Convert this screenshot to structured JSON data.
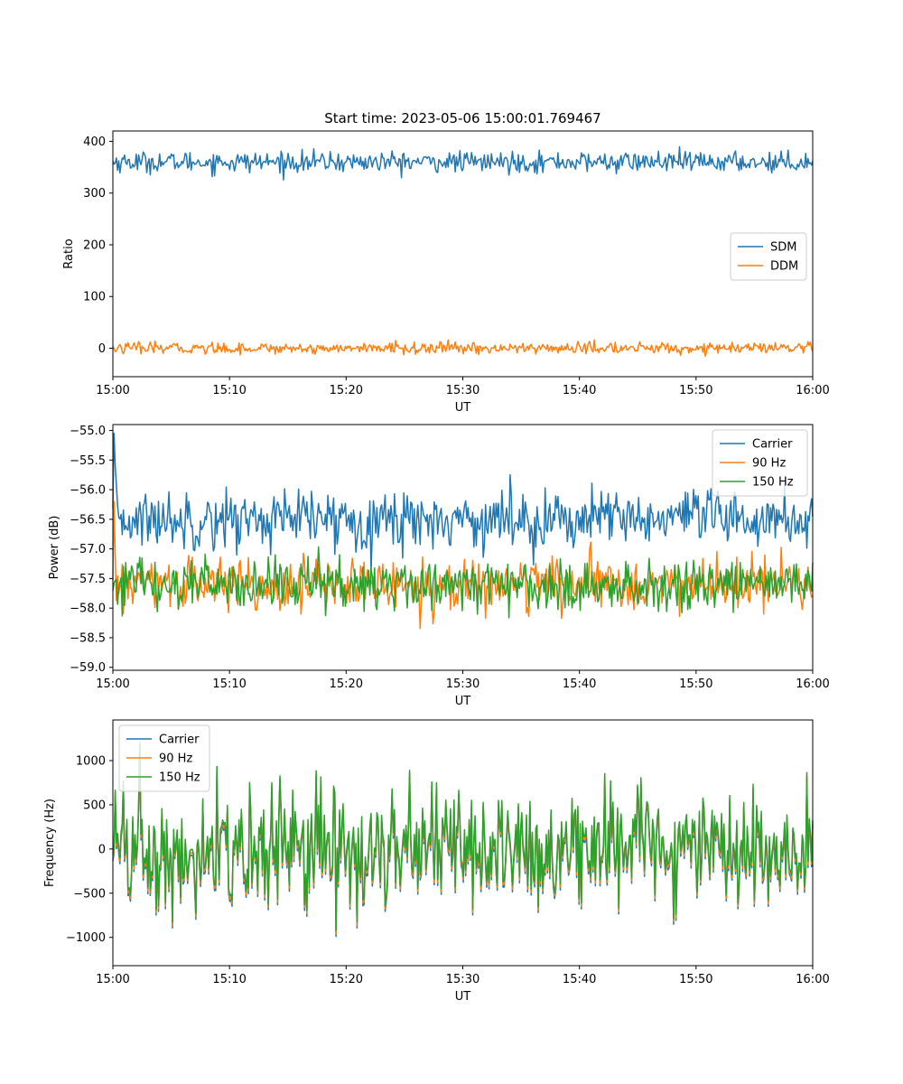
{
  "chart_data": [
    {
      "type": "line",
      "title": "Start time: 2023-05-06 15:00:01.769467",
      "xlabel": "UT",
      "ylabel": "Ratio",
      "xlim": [
        "15:00",
        "16:00"
      ],
      "xticks": [
        "15:00",
        "15:10",
        "15:20",
        "15:30",
        "15:40",
        "15:50",
        "16:00"
      ],
      "ylim": [
        -55,
        420
      ],
      "yticks": [
        0,
        100,
        200,
        300,
        400
      ],
      "legend_position": "center-right",
      "series": [
        {
          "name": "SDM",
          "color": "#1f77b4",
          "center": 360,
          "spread": 18
        },
        {
          "name": "DDM",
          "color": "#ff7f0e",
          "center": 0,
          "spread": 10
        }
      ]
    },
    {
      "type": "line",
      "title": "",
      "xlabel": "UT",
      "ylabel": "Power (dB)",
      "xlim": [
        "15:00",
        "16:00"
      ],
      "xticks": [
        "15:00",
        "15:10",
        "15:20",
        "15:30",
        "15:40",
        "15:50",
        "16:00"
      ],
      "ylim": [
        -59.05,
        -54.9
      ],
      "yticks": [
        -55.0,
        -55.5,
        -56.0,
        -56.5,
        -57.0,
        -57.5,
        -58.0,
        -58.5,
        -59.0
      ],
      "legend_position": "top-right",
      "series": [
        {
          "name": "Carrier",
          "color": "#1f77b4",
          "center": -56.5,
          "spread": 0.45
        },
        {
          "name": "90 Hz",
          "color": "#ff7f0e",
          "center": -57.6,
          "spread": 0.4
        },
        {
          "name": "150 Hz",
          "color": "#2ca02c",
          "center": -57.6,
          "spread": 0.4
        }
      ]
    },
    {
      "type": "line",
      "title": "",
      "xlabel": "UT",
      "ylabel": "Frequency (Hz)",
      "xlim": [
        "15:00",
        "16:00"
      ],
      "xticks": [
        "15:00",
        "15:10",
        "15:20",
        "15:30",
        "15:40",
        "15:50",
        "16:00"
      ],
      "ylim": [
        -1320,
        1460
      ],
      "yticks": [
        -1000,
        -500,
        0,
        500,
        1000
      ],
      "legend_position": "top-left",
      "series": [
        {
          "name": "Carrier",
          "color": "#1f77b4",
          "center": 0,
          "spread": 400
        },
        {
          "name": "90 Hz",
          "color": "#ff7f0e",
          "center": 0,
          "spread": 400
        },
        {
          "name": "150 Hz",
          "color": "#2ca02c",
          "center": 0,
          "spread": 400
        }
      ]
    }
  ]
}
